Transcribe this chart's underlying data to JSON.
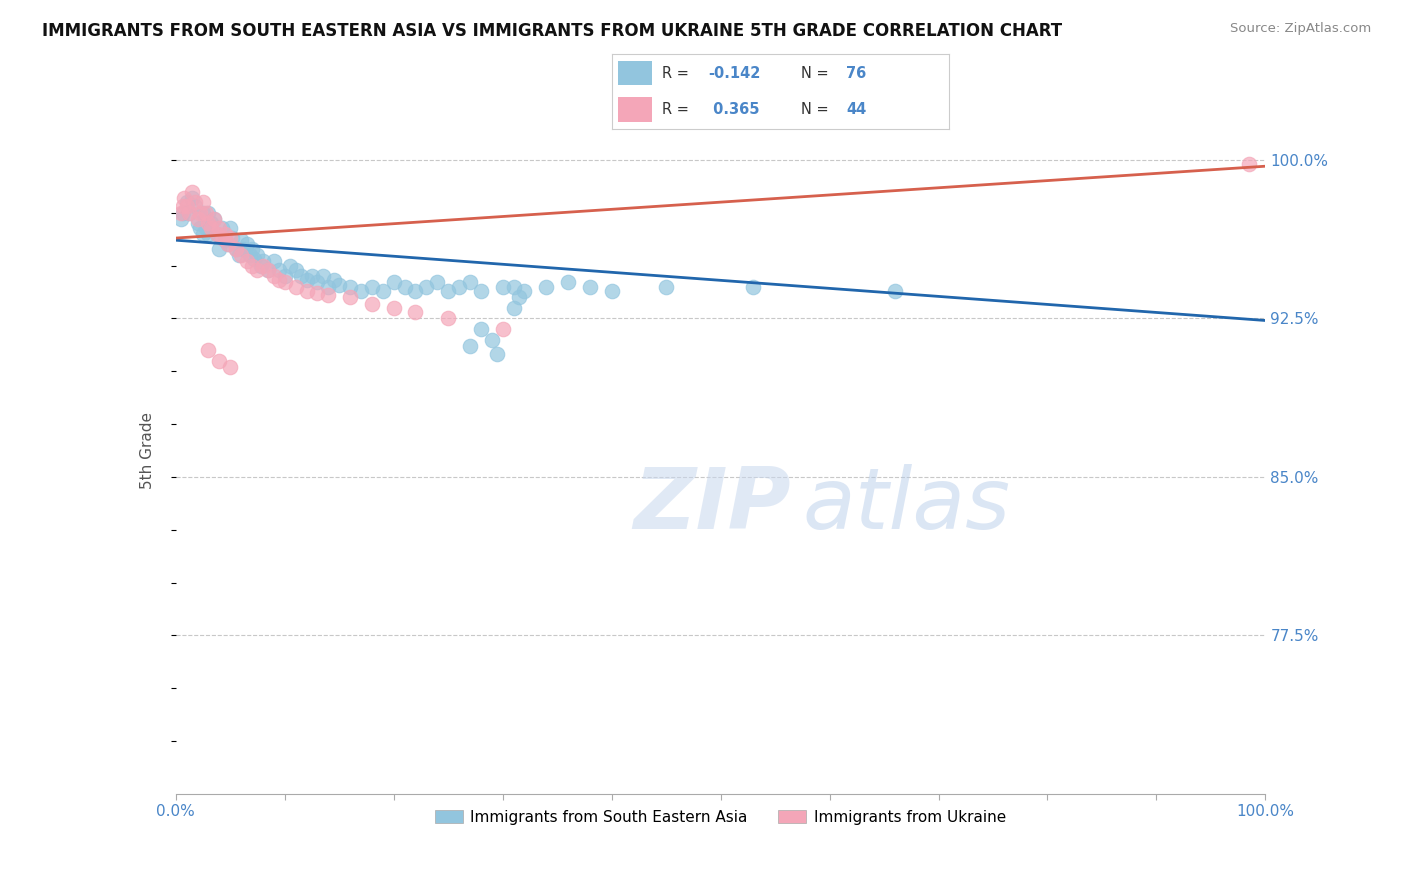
{
  "title": "IMMIGRANTS FROM SOUTH EASTERN ASIA VS IMMIGRANTS FROM UKRAINE 5TH GRADE CORRELATION CHART",
  "source": "Source: ZipAtlas.com",
  "ylabel": "5th Grade",
  "ytick_vals": [
    0.725,
    0.75,
    0.775,
    0.8,
    0.825,
    0.85,
    0.875,
    0.9,
    0.925,
    0.95,
    0.975,
    1.0
  ],
  "ytick_labels": [
    "",
    "",
    "77.5%",
    "",
    "",
    "85.0%",
    "",
    "",
    "92.5%",
    "",
    "",
    "100.0%"
  ],
  "xmin": 0.0,
  "xmax": 1.0,
  "ymin": 0.7,
  "ymax": 1.025,
  "blue_color": "#92c5de",
  "pink_color": "#f4a6b8",
  "blue_line_color": "#2166ac",
  "pink_line_color": "#d6604d",
  "r_blue": -0.142,
  "n_blue": 76,
  "r_pink": 0.365,
  "n_pink": 44,
  "series1_label": "Immigrants from South Eastern Asia",
  "series2_label": "Immigrants from Ukraine",
  "watermark_zip": "ZIP",
  "watermark_atlas": "atlas",
  "blue_line_start_y": 0.962,
  "blue_line_end_y": 0.924,
  "pink_line_start_y": 0.963,
  "pink_line_end_y": 0.997,
  "blue_scatter_x": [
    0.005,
    0.007,
    0.01,
    0.012,
    0.015,
    0.018,
    0.02,
    0.022,
    0.025,
    0.025,
    0.028,
    0.03,
    0.03,
    0.032,
    0.035,
    0.038,
    0.04,
    0.042,
    0.045,
    0.048,
    0.05,
    0.052,
    0.055,
    0.058,
    0.06,
    0.062,
    0.065,
    0.068,
    0.07,
    0.072,
    0.075,
    0.078,
    0.08,
    0.085,
    0.09,
    0.095,
    0.1,
    0.105,
    0.11,
    0.115,
    0.12,
    0.125,
    0.13,
    0.135,
    0.14,
    0.145,
    0.15,
    0.16,
    0.17,
    0.18,
    0.19,
    0.2,
    0.21,
    0.22,
    0.23,
    0.24,
    0.25,
    0.26,
    0.27,
    0.28,
    0.3,
    0.32,
    0.34,
    0.36,
    0.38,
    0.4,
    0.45,
    0.53,
    0.66,
    0.31,
    0.28,
    0.29,
    0.27,
    0.31,
    0.295,
    0.315
  ],
  "blue_scatter_y": [
    0.972,
    0.975,
    0.98,
    0.975,
    0.982,
    0.978,
    0.97,
    0.968,
    0.975,
    0.965,
    0.968,
    0.975,
    0.965,
    0.97,
    0.972,
    0.965,
    0.958,
    0.968,
    0.962,
    0.96,
    0.968,
    0.963,
    0.958,
    0.955,
    0.962,
    0.958,
    0.96,
    0.955,
    0.958,
    0.953,
    0.955,
    0.95,
    0.952,
    0.948,
    0.952,
    0.948,
    0.945,
    0.95,
    0.948,
    0.945,
    0.943,
    0.945,
    0.942,
    0.945,
    0.94,
    0.943,
    0.941,
    0.94,
    0.938,
    0.94,
    0.938,
    0.942,
    0.94,
    0.938,
    0.94,
    0.942,
    0.938,
    0.94,
    0.942,
    0.938,
    0.94,
    0.938,
    0.94,
    0.942,
    0.94,
    0.938,
    0.94,
    0.94,
    0.938,
    0.94,
    0.92,
    0.915,
    0.912,
    0.93,
    0.908,
    0.935
  ],
  "pink_scatter_x": [
    0.005,
    0.007,
    0.008,
    0.01,
    0.012,
    0.015,
    0.018,
    0.02,
    0.022,
    0.025,
    0.028,
    0.03,
    0.032,
    0.035,
    0.038,
    0.04,
    0.042,
    0.045,
    0.048,
    0.05,
    0.055,
    0.06,
    0.065,
    0.07,
    0.075,
    0.08,
    0.085,
    0.09,
    0.095,
    0.1,
    0.11,
    0.12,
    0.13,
    0.14,
    0.16,
    0.18,
    0.2,
    0.22,
    0.25,
    0.3,
    0.03,
    0.04,
    0.05,
    0.985
  ],
  "pink_scatter_y": [
    0.975,
    0.978,
    0.982,
    0.978,
    0.975,
    0.985,
    0.98,
    0.972,
    0.975,
    0.98,
    0.975,
    0.97,
    0.968,
    0.972,
    0.965,
    0.968,
    0.963,
    0.965,
    0.96,
    0.963,
    0.958,
    0.955,
    0.952,
    0.95,
    0.948,
    0.95,
    0.948,
    0.945,
    0.943,
    0.942,
    0.94,
    0.938,
    0.937,
    0.936,
    0.935,
    0.932,
    0.93,
    0.928,
    0.925,
    0.92,
    0.91,
    0.905,
    0.902,
    0.998
  ]
}
